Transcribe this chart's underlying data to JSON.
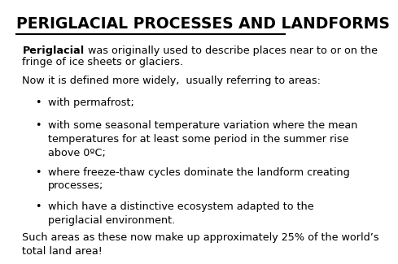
{
  "title": "PERIGLACIAL PROCESSES AND LANDFORMS",
  "background_color": "#ffffff",
  "title_fontsize": 13.5,
  "title_color": "#000000",
  "body_fontsize": 9.2,
  "para1_bold": "Periglacial",
  "para1_rest": " was originally used to describe places near to or on the\nfringe of ice sheets or glaciers.",
  "para2": "Now it is defined more widely,  usually referring to areas:",
  "bullets": [
    "with permafrost;",
    "with some seasonal temperature variation where the mean\ntemperatures for at least some period in the summer rise\nabove 0ºC;",
    "where freeze-thaw cycles dominate the landform creating\nprocesses;",
    "which have a distinctive ecosystem adapted to the\nperiglacial environment."
  ],
  "bullet_line_counts": [
    1,
    3,
    2,
    2
  ],
  "para3": "Such areas as these now make up approximately 25% of the world’s\ntotal land area!"
}
